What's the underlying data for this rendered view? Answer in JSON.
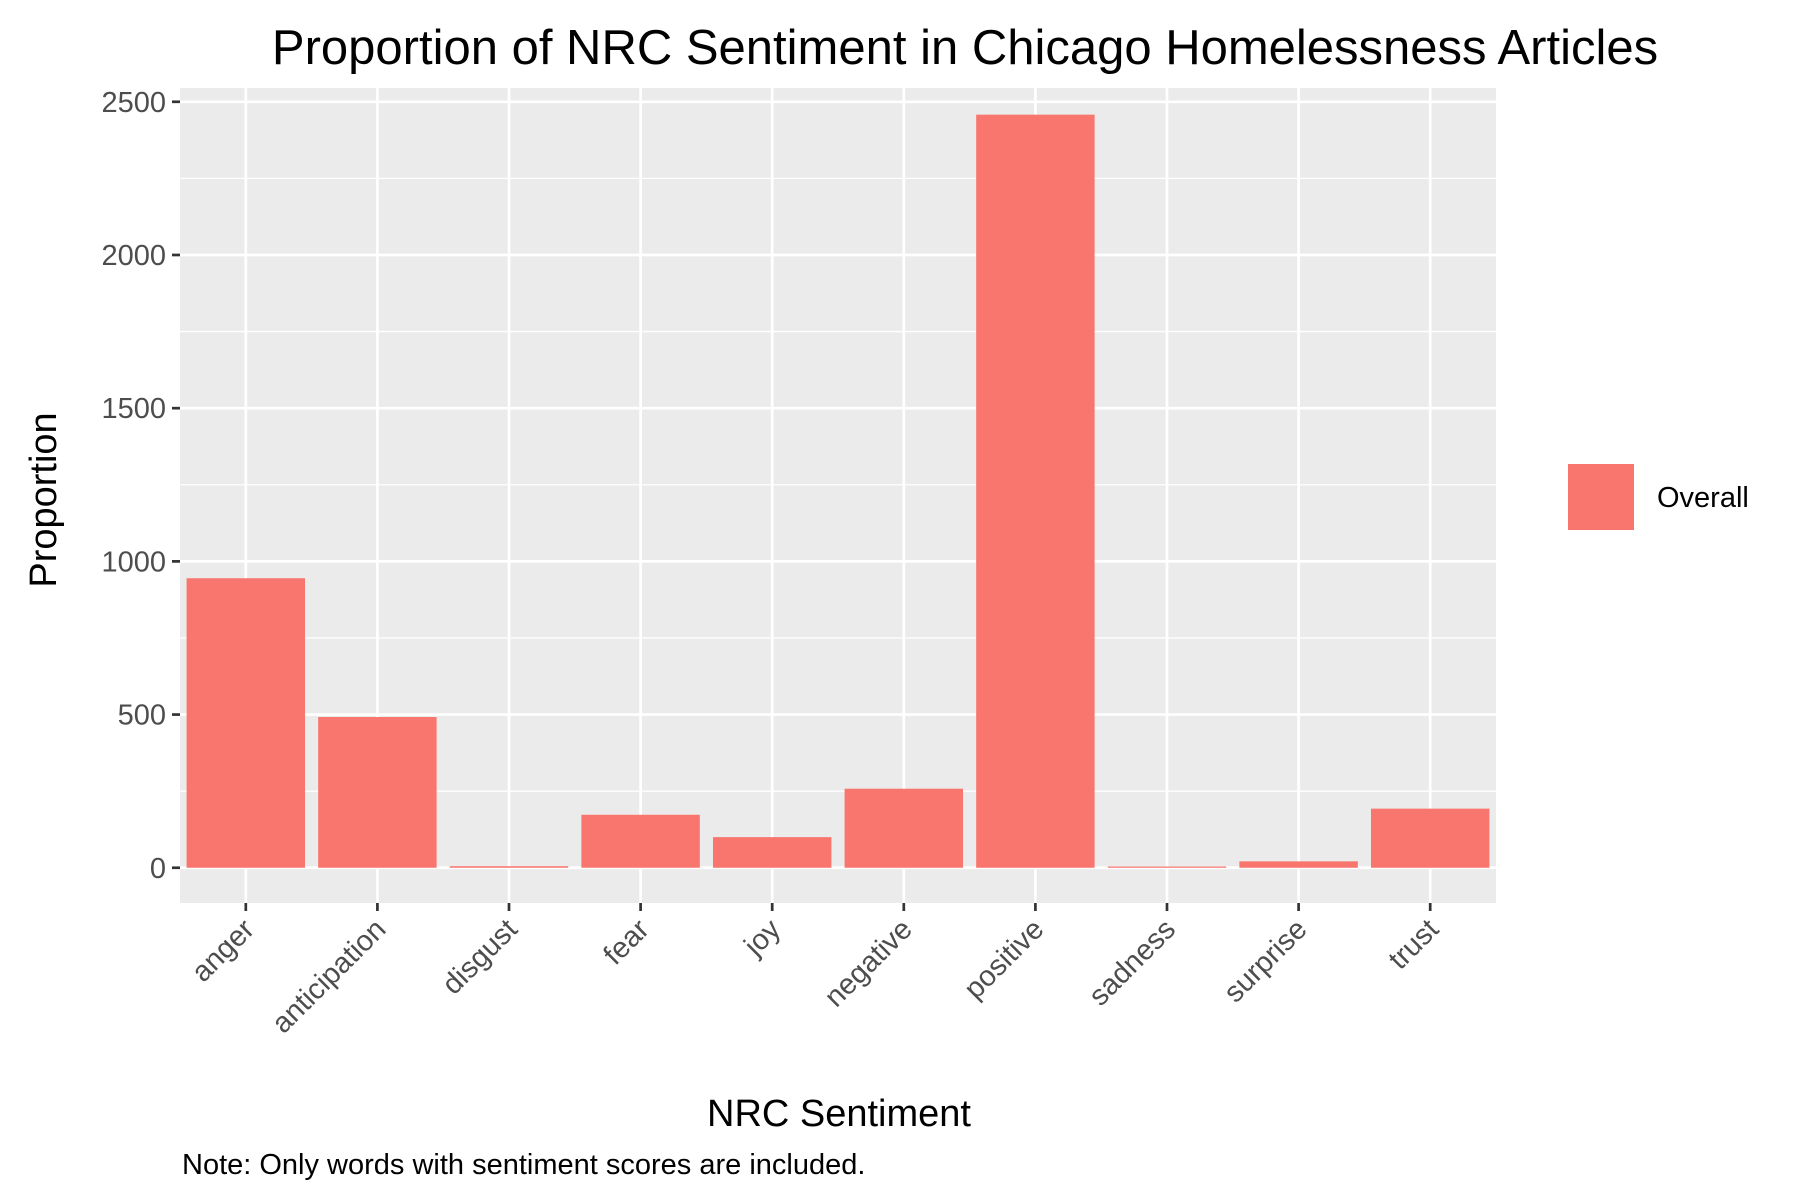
{
  "chart_data": {
    "type": "bar",
    "title": "Proportion of NRC Sentiment in Chicago Homelessness Articles",
    "xlabel": "NRC Sentiment",
    "ylabel": "Proportion",
    "caption": "Note: Only words with sentiment scores are included.",
    "categories": [
      "anger",
      "anticipation",
      "disgust",
      "fear",
      "joy",
      "negative",
      "positive",
      "sadness",
      "surprise",
      "trust"
    ],
    "series": [
      {
        "name": "Overall",
        "color": "#F8766D",
        "values": [
          945,
          492,
          5,
          173,
          100,
          258,
          2458,
          4,
          21,
          193
        ]
      }
    ],
    "ylim": [
      -115,
      2545
    ],
    "yticks": [
      0,
      500,
      1000,
      1500,
      2000,
      2500
    ],
    "grid": true,
    "legend_position": "right",
    "panel_background": "#EBEBEB",
    "grid_color": "#FFFFFF"
  }
}
